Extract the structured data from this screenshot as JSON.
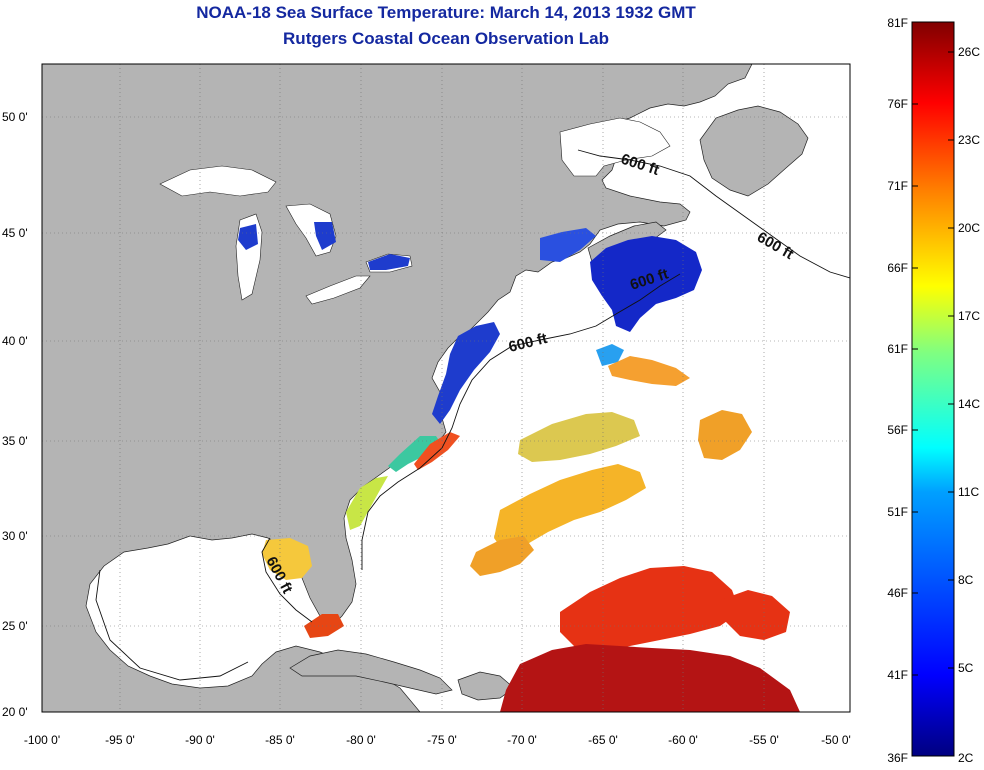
{
  "title": "NOAA-18 Sea Surface Temperature:  March 14, 2013 1932 GMT",
  "subtitle": "Rutgers Coastal Ocean Observation Lab",
  "map": {
    "lat_ticks": [
      {
        "value": 50,
        "label": "50 0'"
      },
      {
        "value": 45,
        "label": "45 0'"
      },
      {
        "value": 40,
        "label": "40 0'"
      },
      {
        "value": 35,
        "label": "35 0'"
      },
      {
        "value": 30,
        "label": "30 0'"
      },
      {
        "value": 25,
        "label": "25 0'"
      },
      {
        "value": 20,
        "label": "20 0'"
      }
    ],
    "lon_ticks": [
      {
        "value": -100,
        "label": "-100 0'"
      },
      {
        "value": -95,
        "label": "-95 0'"
      },
      {
        "value": -90,
        "label": "-90 0'"
      },
      {
        "value": -85,
        "label": "-85 0'"
      },
      {
        "value": -80,
        "label": "-80 0'"
      },
      {
        "value": -75,
        "label": "-75 0'"
      },
      {
        "value": -70,
        "label": "-70 0'"
      },
      {
        "value": -65,
        "label": "-65 0'"
      },
      {
        "value": -60,
        "label": "-60 0'"
      },
      {
        "value": -55,
        "label": "-55 0'"
      },
      {
        "value": -50,
        "label": "-50 0'"
      }
    ],
    "isobath_labels": [
      "600 ft",
      "600 ft",
      "600 ft",
      "600 ft",
      "600 ft"
    ],
    "colors": {
      "land": "#b4b4b4",
      "ocean": "#ffffff",
      "grid": "#707070"
    }
  },
  "colorbar": {
    "fahrenheit_labels": [
      "81F",
      "76F",
      "71F",
      "66F",
      "61F",
      "56F",
      "51F",
      "46F",
      "41F",
      "36F"
    ],
    "celsius_labels": [
      "26C",
      "23C",
      "20C",
      "17C",
      "14C",
      "11C",
      "8C",
      "5C",
      "2C"
    ],
    "colors": [
      "#800000",
      "#ff0000",
      "#ff8000",
      "#ffff00",
      "#80ff80",
      "#00ffff",
      "#0080ff",
      "#0000ff",
      "#000080"
    ]
  }
}
